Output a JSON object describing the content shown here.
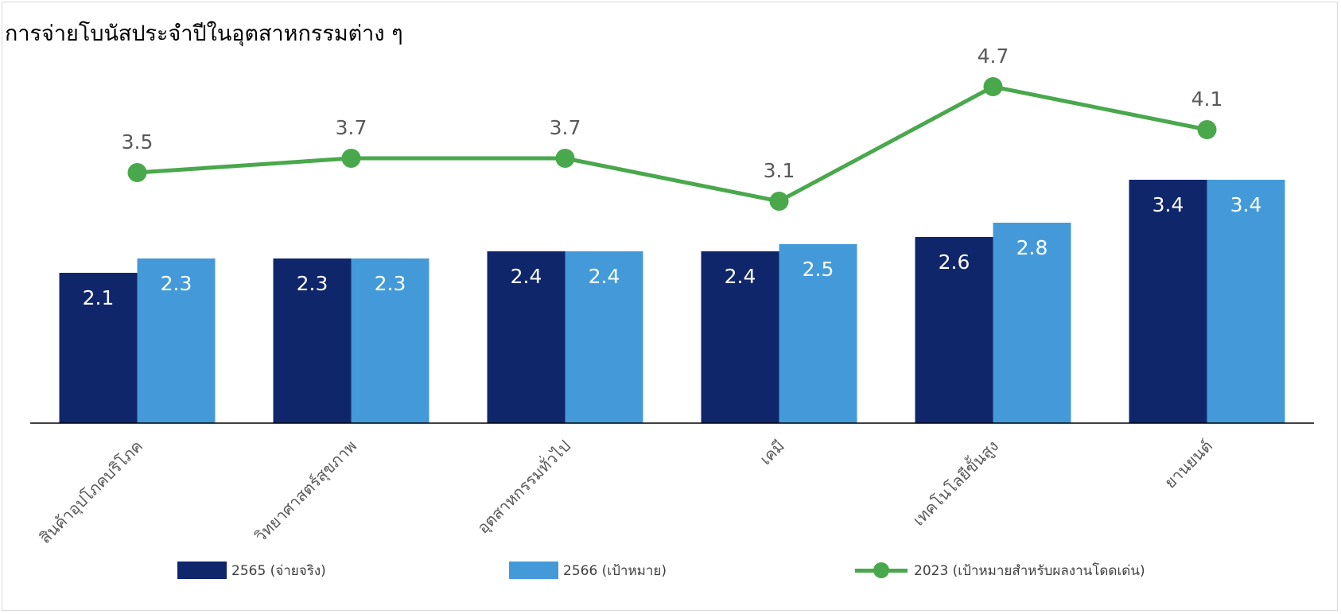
{
  "chart_data": {
    "type": "bar",
    "title": "การจ่ายโบนัสประจำปีในอุตสาหกรรมต่าง ๆ",
    "categories": [
      "สินค้าอุปโภคบริโภค",
      "วิทยาศาสตร์สุขภาพ",
      "อุตสาหกรรมทั่วไป",
      "เคมี",
      "เทคโนโลยีขั้นสูง",
      "ยานยนต์"
    ],
    "series": [
      {
        "name": "2565 (จ่ายจริง)",
        "kind": "bar",
        "color": "#10266b",
        "values": [
          2.1,
          2.3,
          2.4,
          2.4,
          2.6,
          3.4
        ]
      },
      {
        "name": "2566 (เป้าหมาย)",
        "kind": "bar",
        "color": "#449ad9",
        "values": [
          2.3,
          2.3,
          2.4,
          2.5,
          2.8,
          3.4
        ]
      },
      {
        "name": "2023 (เป้าหมายสำหรับผลงานโดดเด่น)",
        "kind": "line",
        "color": "#4aa84c",
        "values": [
          3.5,
          3.7,
          3.7,
          3.1,
          4.7,
          4.1
        ]
      }
    ],
    "ylim": [
      0,
      5
    ],
    "grid": false,
    "legend_position": "bottom",
    "colors": {
      "bar_label": "#ffffff",
      "line_label": "#595959",
      "axis": "#000000",
      "category_label": "#595959"
    }
  }
}
